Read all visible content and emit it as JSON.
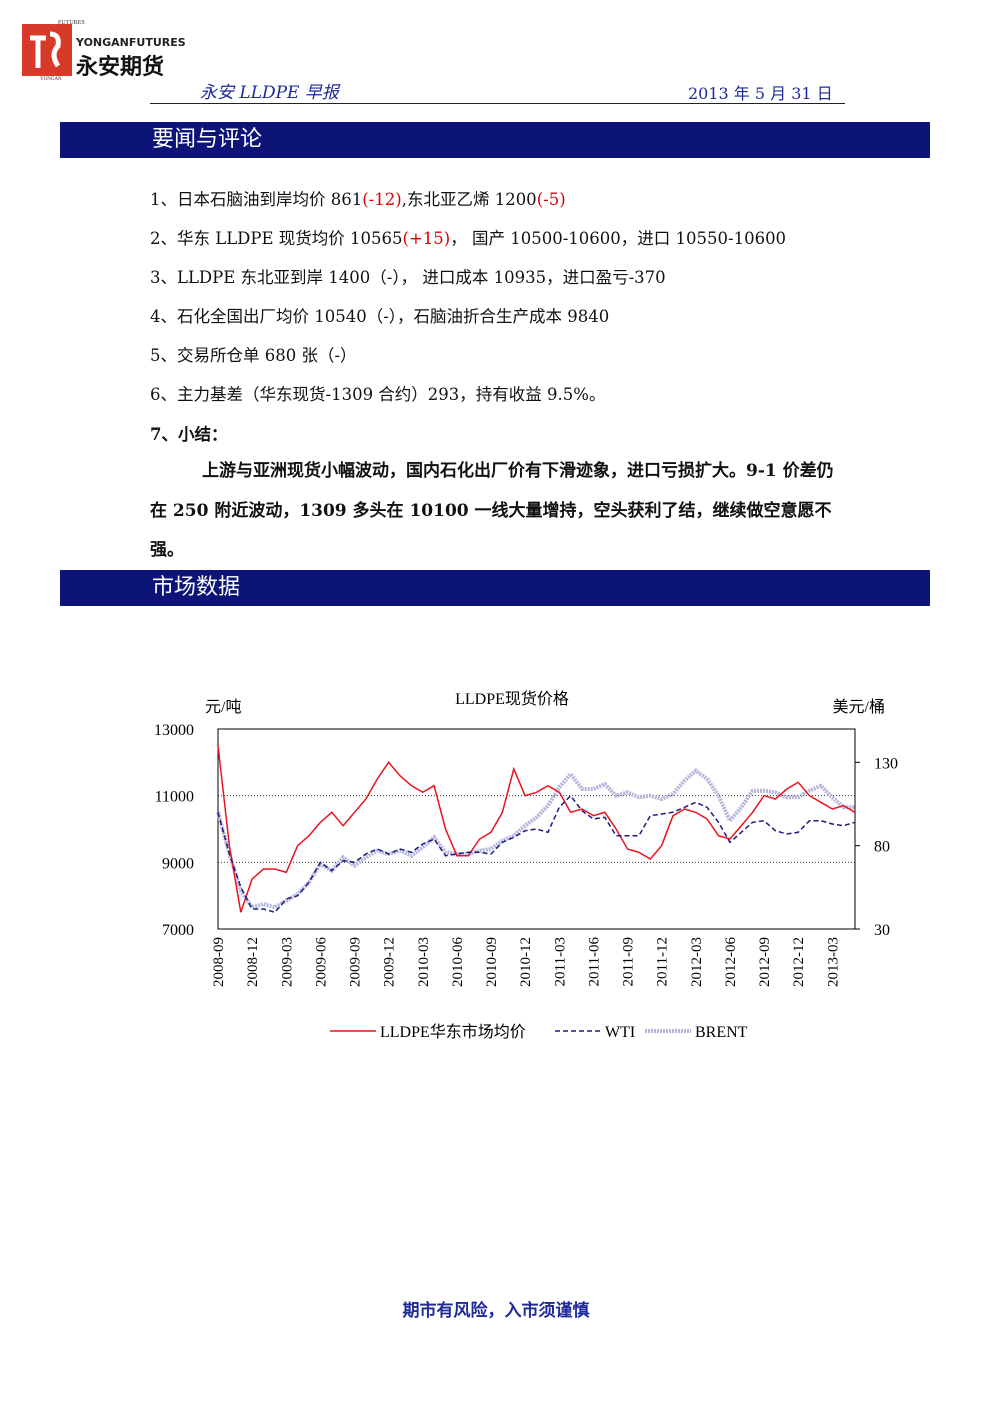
{
  "header": {
    "logo_small_top": "FUTURES",
    "logo_en": "YONGANFUTURES",
    "logo_small_side": "YONGAN",
    "logo_cn": "永安期货",
    "report_title": "永安 LLDPE 早报",
    "date": "2013 年 5 月 31 日"
  },
  "sections": [
    {
      "title": "要闻与评论",
      "items": [
        [
          {
            "text": "1、日本石脑油到岸均价 861"
          },
          {
            "text": "(-12)",
            "color": "#e00000"
          },
          {
            "text": ",东北亚乙烯 1200"
          },
          {
            "text": "(-5)",
            "color": "#e00000"
          }
        ],
        [
          {
            "text": "2、华东 LLDPE 现货均价 10565"
          },
          {
            "text": "(+15)",
            "color": "#e00000"
          },
          {
            "text": "， 国产 10500-10600，进口 10550-10600"
          }
        ],
        [
          {
            "text": "3、LLDPE 东北亚到岸 1400（-）， 进口成本 10935，进口盈亏-370"
          }
        ],
        [
          {
            "text": "4、石化全国出厂均价 10540（-），石脑油折合生产成本 9840"
          }
        ],
        [
          {
            "text": "5、交易所仓单 680 张（-）"
          }
        ],
        [
          {
            "text": "6、主力基差（华东现货-1309 合约）293，持有收益 9.5%。"
          }
        ]
      ],
      "summary_title": "7、小结：",
      "summary": "上游与亚洲现货小幅波动，国内石化出厂价有下滑迹象，进口亏损扩大。9-1 价差仍在 250 附近波动，1309 多头在 10100 一线大量增持，空头获利了结，继续做空意愿不强。"
    },
    {
      "title": "市场数据"
    }
  ],
  "chart_data": {
    "type": "line",
    "title": "LLDPE现货价格",
    "y_label": "元/吨",
    "y2_label": "美元/桶",
    "categories": [
      "2008-09",
      null,
      null,
      "2008-12",
      null,
      null,
      "2009-03",
      null,
      null,
      "2009-06",
      null,
      null,
      "2009-09",
      null,
      null,
      "2009-12",
      null,
      null,
      "2010-03",
      null,
      null,
      "2010-06",
      null,
      null,
      "2010-09",
      null,
      null,
      "2010-12",
      null,
      null,
      "2011-03",
      null,
      null,
      "2011-06",
      null,
      null,
      "2011-09",
      null,
      null,
      "2011-12",
      null,
      null,
      "2012-03",
      null,
      null,
      "2012-06",
      null,
      null,
      "2012-09",
      null,
      null,
      "2012-12",
      null,
      null,
      "2013-03",
      null,
      null
    ],
    "ylim": [
      7000,
      13000
    ],
    "yticks": [
      7000,
      9000,
      11000,
      13000
    ],
    "y2lim": [
      30,
      150
    ],
    "y2ticks": [
      30,
      80,
      130
    ],
    "grid": true,
    "series": [
      {
        "name": "LLDPE华东市场均价",
        "color": "#e8141e",
        "values": [
          12500,
          9500,
          7500,
          8500,
          8800,
          8800,
          8700,
          9500,
          9800,
          10200,
          10500,
          10100,
          10500,
          10900,
          11500,
          12000,
          11600,
          11300,
          11100,
          11300,
          10000,
          9200,
          9200,
          9700,
          9900,
          10500,
          11800,
          11000,
          11100,
          11300,
          11100,
          10500,
          10600,
          10400,
          10500,
          10000,
          9400,
          9300,
          9100,
          9500,
          10400,
          10600,
          10500,
          10300,
          9800,
          9700,
          10100,
          10500,
          11000,
          10900,
          11200,
          11400,
          11000,
          10800,
          10600,
          10700,
          10500
        ]
      },
      {
        "name": "WTI",
        "color": "#1a1a80",
        "axis": "y2",
        "values": [
          100,
          75,
          55,
          42,
          42,
          40,
          48,
          50,
          58,
          70,
          65,
          71,
          70,
          75,
          78,
          75,
          78,
          76,
          81,
          84,
          74,
          75,
          76,
          76,
          75,
          82,
          85,
          89,
          90,
          88,
          103,
          110,
          101,
          96,
          97,
          86,
          86,
          86,
          98,
          99,
          100,
          103,
          106,
          103,
          94,
          82,
          88,
          94,
          95,
          89,
          87,
          88,
          95,
          95,
          93,
          92,
          94
        ]
      },
      {
        "name": "BRENT",
        "color": "#b4b4dc",
        "axis": "y2",
        "values": [
          100,
          75,
          53,
          43,
          45,
          43,
          47,
          51,
          58,
          69,
          65,
          73,
          68,
          73,
          77,
          75,
          77,
          74,
          79,
          85,
          76,
          75,
          75,
          77,
          78,
          83,
          86,
          92,
          97,
          104,
          115,
          123,
          114,
          114,
          117,
          110,
          112,
          109,
          110,
          108,
          111,
          119,
          125,
          120,
          110,
          95,
          103,
          113,
          113,
          112,
          109,
          109,
          113,
          116,
          109,
          103,
          103
        ]
      }
    ]
  },
  "footer": "期市有风险，入市须谨慎"
}
